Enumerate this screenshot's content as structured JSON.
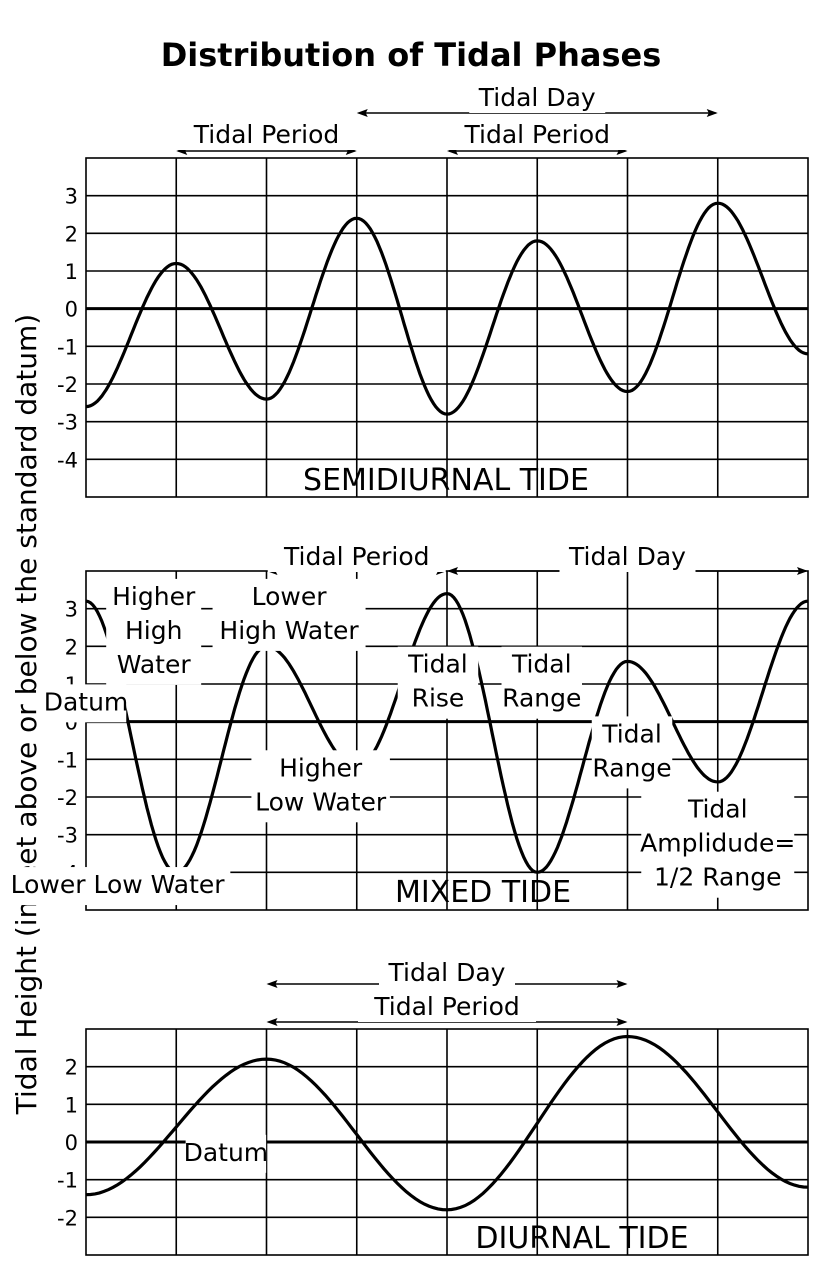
{
  "title": "Distribution of Tidal Phases",
  "ylabel": "Tidal Height (in feet above or below the standard datum)",
  "chart_data": [
    {
      "type": "line",
      "name_label": "SEMIDIURNAL TIDE",
      "ylim": [
        -5,
        4
      ],
      "yticks": [
        3,
        2,
        1,
        0,
        -1,
        -2,
        -3,
        -4
      ],
      "x": [
        0,
        1,
        2,
        3,
        4,
        5,
        6,
        7,
        8
      ],
      "values": [
        -2.6,
        1.2,
        -2.4,
        2.4,
        -2.8,
        1.8,
        -2.2,
        2.8,
        -1.2
      ],
      "grid": true,
      "spans": [
        {
          "label": "Tidal Day",
          "from": 3,
          "to": 7,
          "row": 0
        },
        {
          "label": "Tidal Period",
          "from": 1,
          "to": 3,
          "row": 1
        },
        {
          "label": "Tidal Period",
          "from": 4,
          "to": 6,
          "row": 1
        }
      ],
      "annotations": []
    },
    {
      "type": "line",
      "name_label": "MIXED TIDE",
      "ylim": [
        -5,
        4
      ],
      "yticks": [
        3,
        2,
        1,
        0,
        -1,
        -2,
        -3,
        -4
      ],
      "x": [
        0,
        1,
        2,
        3,
        4,
        5,
        6,
        7,
        8
      ],
      "values": [
        3.2,
        -4,
        2,
        -1.2,
        3.4,
        -4,
        1.6,
        -1.6,
        3.2
      ],
      "grid": true,
      "spans": [
        {
          "label": "Tidal Period",
          "from": 2,
          "to": 4,
          "row": 0
        },
        {
          "label": "Tidal Day",
          "from": 4,
          "to": 8,
          "row": 0
        }
      ],
      "annotations": [
        {
          "lines": [
            "Higher",
            "High",
            "Water"
          ],
          "x": 0.75,
          "y": 3.1
        },
        {
          "lines": [
            "Lower",
            "High Water"
          ],
          "x": 2.25,
          "y": 3.1
        },
        {
          "lines": [
            "Datum"
          ],
          "x": 0,
          "y": 0.3
        },
        {
          "lines": [
            "Tidal",
            "Rise"
          ],
          "x": 3.9,
          "y": 1.3
        },
        {
          "lines": [
            "Tidal",
            "Range"
          ],
          "x": 5.05,
          "y": 1.3
        },
        {
          "lines": [
            "Tidal",
            "Range"
          ],
          "x": 6.05,
          "y": -0.55
        },
        {
          "lines": [
            "Higher",
            "Low Water"
          ],
          "x": 2.6,
          "y": -1.45
        },
        {
          "lines": [
            "Tidal",
            "Amplidude=",
            "1/2 Range"
          ],
          "x": 7,
          "y": -2.55
        },
        {
          "lines": [
            "Lower Low Water"
          ],
          "x": 0.35,
          "y": -4.55
        }
      ]
    },
    {
      "type": "line",
      "name_label": "DIURNAL TIDE",
      "ylim": [
        -3,
        3
      ],
      "yticks": [
        2,
        1,
        0,
        -1,
        -2
      ],
      "x": [
        0,
        2,
        4,
        6,
        8
      ],
      "values": [
        -1.4,
        2.2,
        -1.8,
        2.8,
        -1.2
      ],
      "grid": true,
      "spans": [
        {
          "label": "Tidal Day",
          "from": 2,
          "to": 6,
          "row": 0
        },
        {
          "label": "Tidal Period",
          "from": 2,
          "to": 6,
          "row": 1
        }
      ],
      "annotations": [
        {
          "lines": [
            "Datum"
          ],
          "x": 1.55,
          "y": -0.5
        }
      ]
    }
  ]
}
